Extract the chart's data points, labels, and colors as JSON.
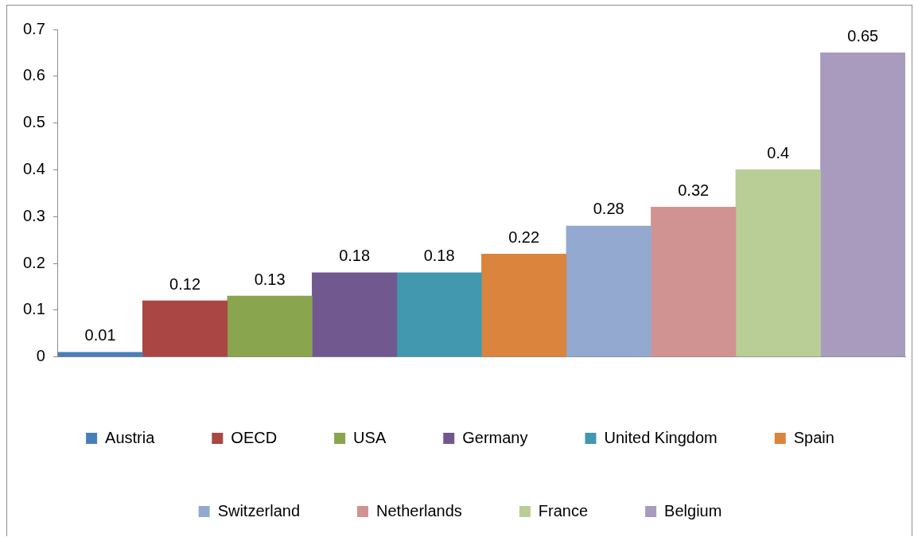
{
  "chart_data": {
    "type": "bar",
    "categories": [
      null
    ],
    "series": [
      {
        "name": "Austria",
        "color": "#4a7ebb",
        "values": [
          0.01
        ]
      },
      {
        "name": "OECD",
        "color": "#aa4643",
        "values": [
          0.12
        ]
      },
      {
        "name": "USA",
        "color": "#89a54e",
        "values": [
          0.13
        ]
      },
      {
        "name": "Germany",
        "color": "#71588f",
        "values": [
          0.18
        ]
      },
      {
        "name": "United Kingdom",
        "color": "#4198af",
        "values": [
          0.18
        ]
      },
      {
        "name": "Spain",
        "color": "#db843d",
        "values": [
          0.22
        ]
      },
      {
        "name": "Switzerland",
        "color": "#93a9cf",
        "values": [
          0.28
        ]
      },
      {
        "name": "Netherlands",
        "color": "#d19392",
        "values": [
          0.32
        ]
      },
      {
        "name": "France",
        "color": "#b9cd96",
        "values": [
          0.4
        ]
      },
      {
        "name": "Belgium",
        "color": "#a99bbd",
        "values": [
          0.65
        ]
      }
    ],
    "ylim": [
      0,
      0.7
    ],
    "yticks": [
      0,
      0.1,
      0.2,
      0.3,
      0.4,
      0.5,
      0.6,
      0.7
    ],
    "grid": false,
    "legend": "bottom",
    "data_labels": true
  }
}
